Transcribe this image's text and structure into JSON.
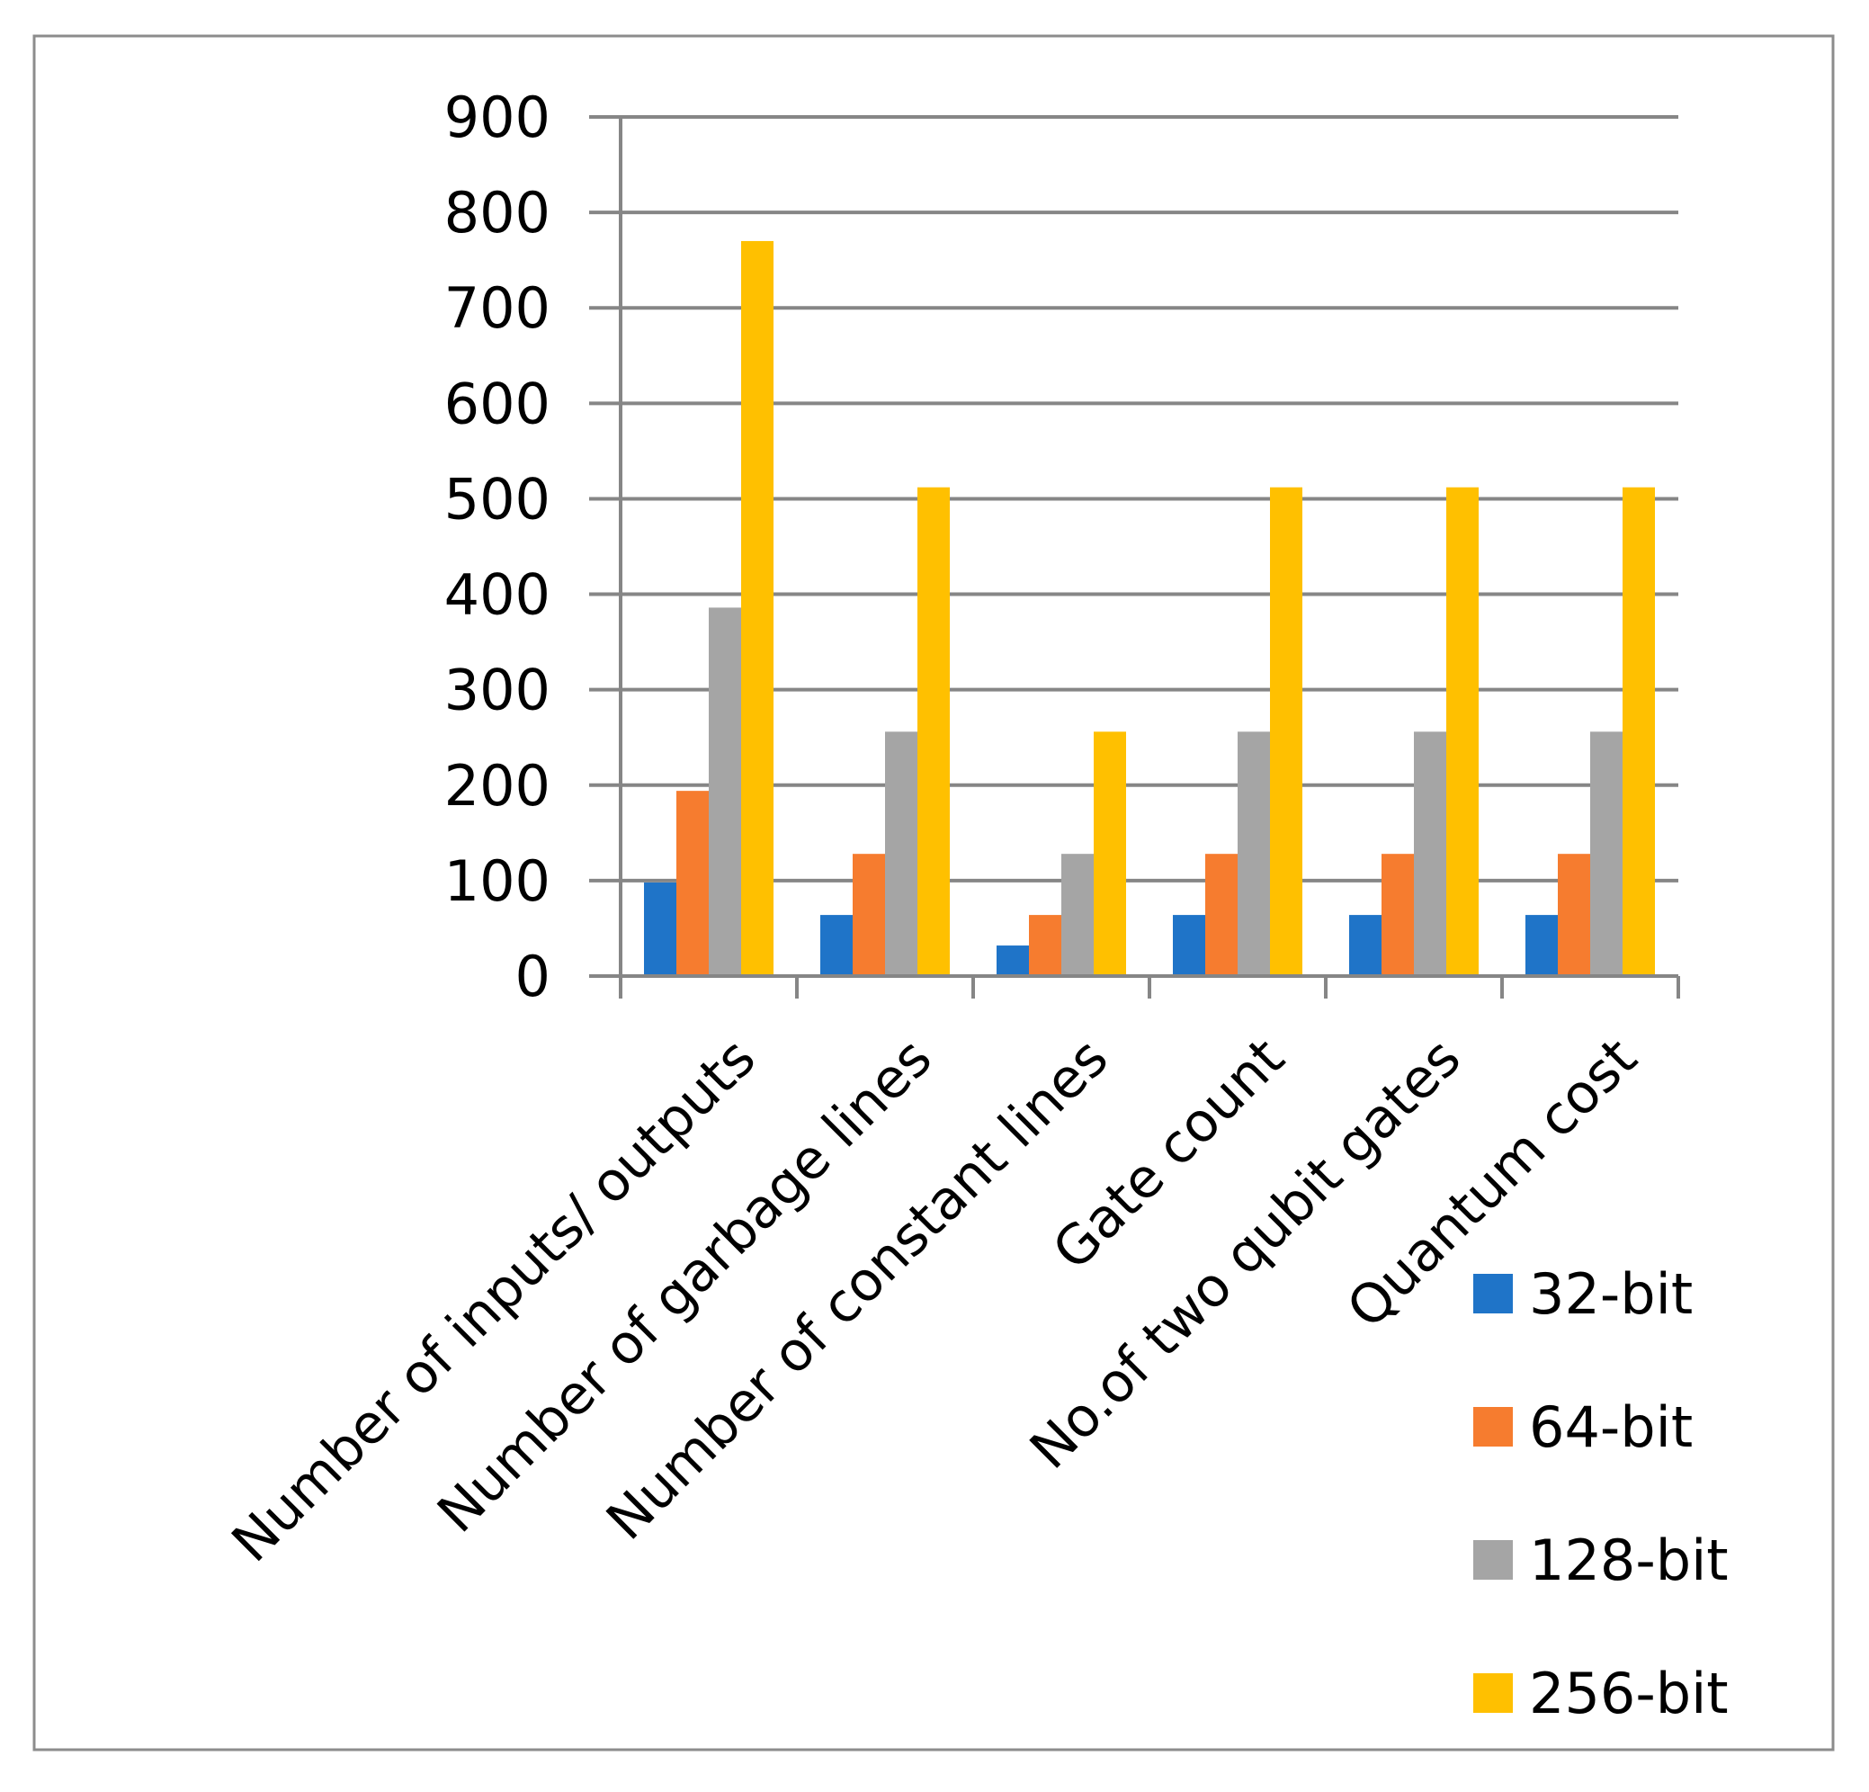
{
  "chart_data": {
    "type": "bar",
    "title": "",
    "xlabel": "",
    "ylabel": "",
    "categories": [
      "Number of inputs/ outputs",
      "Number of garbage lines",
      "Number of constant lines",
      "Gate count",
      "No.of two qubit gates",
      "Quantum cost"
    ],
    "series": [
      {
        "name": "32-bit",
        "color": "#1F74C8",
        "values": [
          98,
          64,
          32,
          64,
          64,
          64
        ]
      },
      {
        "name": "64-bit",
        "color": "#F67C2F",
        "values": [
          194,
          128,
          64,
          128,
          128,
          128
        ]
      },
      {
        "name": "128-bit",
        "color": "#A5A5A5",
        "values": [
          386,
          256,
          128,
          256,
          256,
          256
        ]
      },
      {
        "name": "256-bit",
        "color": "#FFC000",
        "values": [
          770,
          512,
          256,
          512,
          512,
          512
        ]
      }
    ],
    "ylim": [
      0,
      900
    ],
    "yticks": [
      0,
      100,
      200,
      300,
      400,
      500,
      600,
      700,
      800,
      900
    ],
    "grid": true,
    "legend": "bottom-right",
    "colors": {
      "grid": "#868686",
      "frame": "#8C8C8C"
    }
  }
}
